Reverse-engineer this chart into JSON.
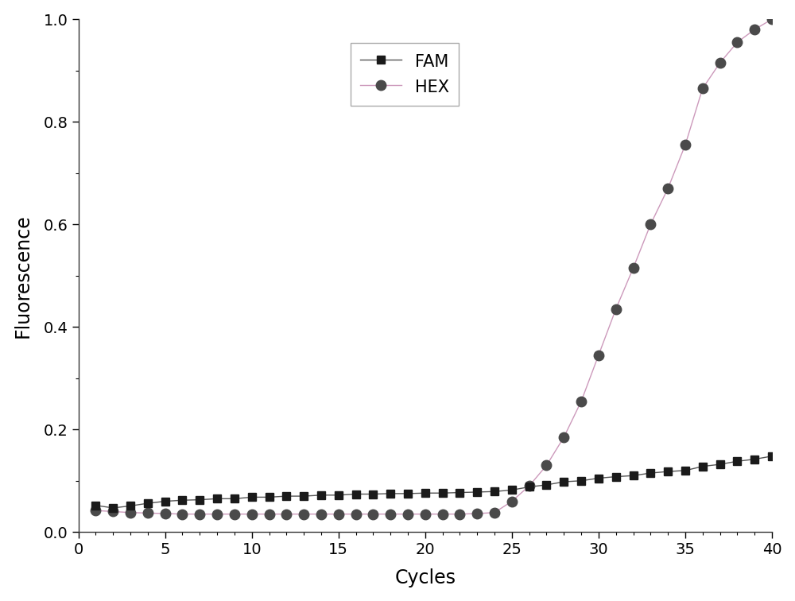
{
  "fam_x": [
    1,
    2,
    3,
    4,
    5,
    6,
    7,
    8,
    9,
    10,
    11,
    12,
    13,
    14,
    15,
    16,
    17,
    18,
    19,
    20,
    21,
    22,
    23,
    24,
    25,
    26,
    27,
    28,
    29,
    30,
    31,
    32,
    33,
    34,
    35,
    36,
    37,
    38,
    39,
    40
  ],
  "fam_y": [
    0.052,
    0.047,
    0.051,
    0.056,
    0.06,
    0.062,
    0.063,
    0.065,
    0.065,
    0.068,
    0.068,
    0.07,
    0.07,
    0.072,
    0.072,
    0.074,
    0.074,
    0.075,
    0.075,
    0.076,
    0.076,
    0.077,
    0.078,
    0.079,
    0.082,
    0.088,
    0.092,
    0.098,
    0.1,
    0.105,
    0.108,
    0.11,
    0.115,
    0.118,
    0.12,
    0.128,
    0.132,
    0.138,
    0.142,
    0.148
  ],
  "hex_x": [
    1,
    2,
    3,
    4,
    5,
    6,
    7,
    8,
    9,
    10,
    11,
    12,
    13,
    14,
    15,
    16,
    17,
    18,
    19,
    20,
    21,
    22,
    23,
    24,
    25,
    26,
    27,
    28,
    29,
    30,
    31,
    32,
    33,
    34,
    35,
    36,
    37,
    38,
    39,
    40
  ],
  "hex_y": [
    0.042,
    0.04,
    0.038,
    0.037,
    0.036,
    0.035,
    0.035,
    0.035,
    0.035,
    0.035,
    0.035,
    0.035,
    0.035,
    0.035,
    0.035,
    0.035,
    0.035,
    0.035,
    0.035,
    0.035,
    0.035,
    0.035,
    0.036,
    0.038,
    0.06,
    0.09,
    0.13,
    0.185,
    0.255,
    0.345,
    0.435,
    0.515,
    0.6,
    0.67,
    0.755,
    0.865,
    0.915,
    0.955,
    0.98,
    1.0
  ],
  "fam_marker_color": "#1a1a1a",
  "fam_line_color": "#555555",
  "hex_marker_color": "#4a4a4a",
  "hex_line_color": "#cc99bb",
  "fam_label": "FAM",
  "hex_label": "HEX",
  "xlabel": "Cycles",
  "ylabel": "Fluorescence",
  "xlim": [
    0,
    40
  ],
  "ylim": [
    0.0,
    1.0
  ],
  "xticks": [
    0,
    5,
    10,
    15,
    20,
    25,
    30,
    35,
    40
  ],
  "yticks": [
    0.0,
    0.2,
    0.4,
    0.6,
    0.8,
    1.0
  ],
  "figsize": [
    10.0,
    7.56
  ],
  "dpi": 100,
  "bg_color": "#ffffff"
}
